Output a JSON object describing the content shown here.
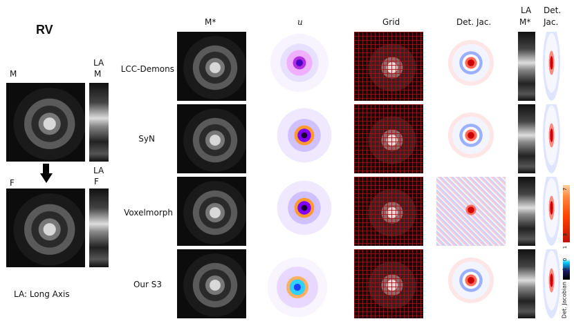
{
  "left": {
    "title": "RV",
    "moving_label": "M",
    "fixed_label": "F",
    "la_moving_label_1": "LA",
    "la_moving_label_2": "M",
    "la_fixed_label_1": "LA",
    "la_fixed_label_2": "F",
    "footnote": "LA: Long Axis"
  },
  "columns": {
    "warped": "M*",
    "displacement": "u",
    "grid": "Grid",
    "det_jac": "Det. Jac.",
    "la_warped_1": "LA",
    "la_warped_2": "M*",
    "la_det_1": "Det.",
    "la_det_2": "Jac."
  },
  "rows": [
    {
      "label": "LCC-Demons"
    },
    {
      "label": "SyN"
    },
    {
      "label": "Voxelmorph"
    },
    {
      "label": "Our S3"
    }
  ],
  "colorbar": {
    "ticks": [
      "7",
      "3",
      "1",
      "0",
      "-1"
    ],
    "caption": "Det. Jacobian"
  }
}
